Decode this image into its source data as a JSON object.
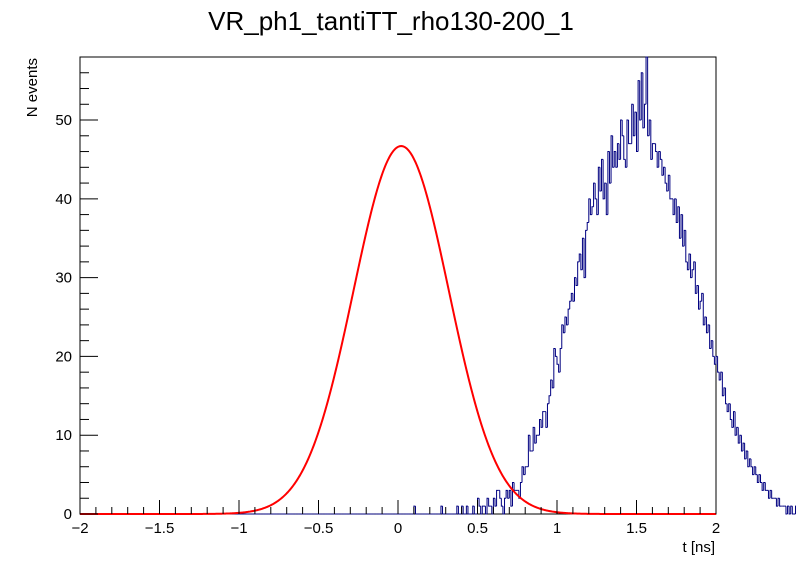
{
  "chart_data": {
    "type": "histogram",
    "title": "VR_ph1_tantiTT_rho130-200_1",
    "xlabel": "t [ns]",
    "ylabel": "N events",
    "xlim": [
      -2,
      2
    ],
    "ylim": [
      0,
      58
    ],
    "x_ticks": [
      -2,
      -1.5,
      -1,
      -0.5,
      0,
      0.5,
      1,
      1.5,
      2
    ],
    "x_tick_labels": [
      "−2",
      "−1.5",
      "−1",
      "−0.5",
      "0",
      "0.5",
      "1",
      "1.5",
      "2"
    ],
    "y_ticks": [
      0,
      10,
      20,
      30,
      40,
      50
    ],
    "y_tick_labels": [
      "0",
      "10",
      "20",
      "30",
      "40",
      "50"
    ],
    "grid": false,
    "legend": "none",
    "series": [
      {
        "kind": "histogram",
        "bin_width": 0.01,
        "bin_start": -2,
        "color": "#000080",
        "values": [
          0,
          0,
          0,
          0,
          0,
          0,
          0,
          0,
          0,
          0,
          0,
          0,
          0,
          0,
          0,
          0,
          0,
          0,
          0,
          0,
          0,
          0,
          0,
          0,
          0,
          0,
          0,
          0,
          0,
          0,
          0,
          0,
          0,
          0,
          0,
          0,
          0,
          0,
          0,
          0,
          0,
          0,
          0,
          0,
          0,
          0,
          0,
          0,
          0,
          0,
          0,
          0,
          0,
          0,
          0,
          0,
          0,
          0,
          0,
          0,
          0,
          0,
          0,
          0,
          0,
          0,
          0,
          0,
          0,
          0,
          0,
          0,
          0,
          0,
          0,
          0,
          0,
          0,
          0,
          0,
          0,
          0,
          0,
          0,
          0,
          0,
          0,
          0,
          0,
          0,
          0,
          0,
          0,
          0,
          0,
          0,
          0,
          0,
          0,
          0,
          0,
          0,
          0,
          0,
          0,
          0,
          0,
          0,
          0,
          0,
          0,
          0,
          0,
          0,
          0,
          0,
          0,
          0,
          0,
          0,
          0,
          0,
          0,
          0,
          0,
          0,
          0,
          0,
          0,
          0,
          0,
          0,
          0,
          0,
          0,
          0,
          0,
          0,
          0,
          0,
          0,
          0,
          0,
          0,
          0,
          0,
          0,
          0,
          0,
          0,
          0,
          0,
          0,
          0,
          0,
          0,
          0,
          0,
          0,
          0,
          0,
          0,
          0,
          0,
          0,
          0,
          0,
          0,
          0,
          0,
          0,
          0,
          0,
          0,
          0,
          0,
          0,
          0,
          0,
          0,
          0,
          0,
          0,
          0,
          0,
          0,
          0,
          0,
          0,
          0,
          0,
          0,
          0,
          0,
          0,
          0,
          0,
          0,
          0,
          0,
          0,
          0,
          0,
          0,
          0,
          0,
          0,
          0,
          0,
          0,
          1,
          0,
          0,
          0,
          0,
          0,
          0,
          0,
          0,
          0,
          0,
          0,
          0,
          0,
          0,
          0,
          0,
          1,
          0,
          0,
          0,
          0,
          0,
          0,
          0,
          0,
          0,
          1,
          0,
          0,
          1,
          0,
          0,
          1,
          0,
          0,
          0,
          1,
          0,
          0,
          2,
          1,
          0,
          1,
          1,
          0,
          2,
          1,
          1,
          0,
          2,
          1,
          3,
          3,
          2,
          1,
          0,
          2,
          3,
          2,
          3,
          1,
          4,
          3,
          3,
          3,
          2,
          4,
          6,
          5,
          6,
          6,
          10,
          8,
          8,
          11,
          9,
          10,
          10,
          12,
          11,
          13,
          13,
          11,
          14,
          15,
          17,
          16,
          21,
          20,
          19,
          18,
          21,
          24,
          23,
          25,
          24,
          26,
          27,
          28,
          27,
          30,
          29,
          32,
          33,
          31,
          35,
          30,
          36,
          37,
          40,
          38,
          39,
          42,
          40,
          38,
          44,
          41,
          45,
          40,
          42,
          38,
          46,
          42,
          48,
          44,
          46,
          44,
          47,
          45,
          50,
          48,
          45,
          44,
          50,
          47,
          47,
          52,
          48,
          51,
          46,
          55,
          50,
          56,
          49,
          52,
          58,
          48,
          50,
          45,
          47,
          47,
          46,
          44,
          46,
          45,
          43,
          44,
          42,
          41,
          43,
          40,
          40,
          38,
          40,
          37,
          39,
          35,
          38,
          34,
          36,
          32,
          31,
          33,
          30,
          31,
          32,
          28,
          29,
          26,
          27,
          28,
          24,
          25,
          23,
          24,
          21,
          22,
          20,
          19,
          20,
          18,
          17,
          18,
          15,
          16,
          14,
          13,
          14,
          12,
          11,
          13,
          10,
          11,
          9,
          10,
          8,
          9,
          7,
          8,
          6,
          7,
          6,
          5,
          6,
          5,
          4,
          5,
          4,
          3,
          4,
          3,
          3,
          2,
          3,
          2,
          2,
          2,
          1,
          2,
          1,
          1,
          1,
          1,
          0,
          1,
          0,
          1,
          0,
          0,
          1,
          0,
          0,
          0,
          1,
          0,
          0,
          0,
          0,
          0,
          1,
          0,
          0,
          0,
          0,
          0,
          0,
          1,
          0,
          0,
          0,
          0,
          0,
          0,
          0,
          0,
          0,
          0,
          0,
          0,
          0,
          0,
          0,
          0,
          0,
          0,
          0,
          0,
          0,
          0,
          0,
          0,
          0,
          0,
          0,
          0,
          0,
          0,
          0,
          0,
          0,
          0,
          0,
          0,
          0,
          0,
          0,
          0,
          0,
          0,
          0,
          0,
          0,
          0,
          0,
          0,
          0,
          0,
          0,
          0,
          0,
          0,
          0,
          0,
          0,
          0,
          0,
          0,
          0,
          0,
          0,
          0,
          0,
          0,
          0,
          0,
          0,
          0,
          0,
          0,
          0,
          0,
          0,
          0,
          0,
          0,
          0,
          0,
          0,
          0,
          0,
          0,
          0,
          0,
          0,
          0,
          0,
          0,
          0,
          0,
          0,
          0,
          0,
          0,
          0,
          0,
          0,
          0,
          0,
          0,
          0,
          0,
          0,
          0,
          0,
          0,
          0,
          0,
          0,
          0,
          0,
          0,
          0,
          0,
          0,
          0,
          0,
          0,
          0,
          0,
          0,
          0,
          0,
          0,
          0,
          0,
          0,
          0,
          0,
          0,
          0,
          0,
          0,
          0,
          0,
          0,
          0,
          0,
          0,
          0,
          0,
          0,
          0,
          0,
          0,
          0,
          0,
          0,
          0,
          0,
          0,
          0,
          0
        ]
      },
      {
        "kind": "gaussian-fit",
        "color": "#ff0000",
        "amplitude": 46.7,
        "mean": 0.02,
        "sigma": 0.3
      }
    ]
  }
}
